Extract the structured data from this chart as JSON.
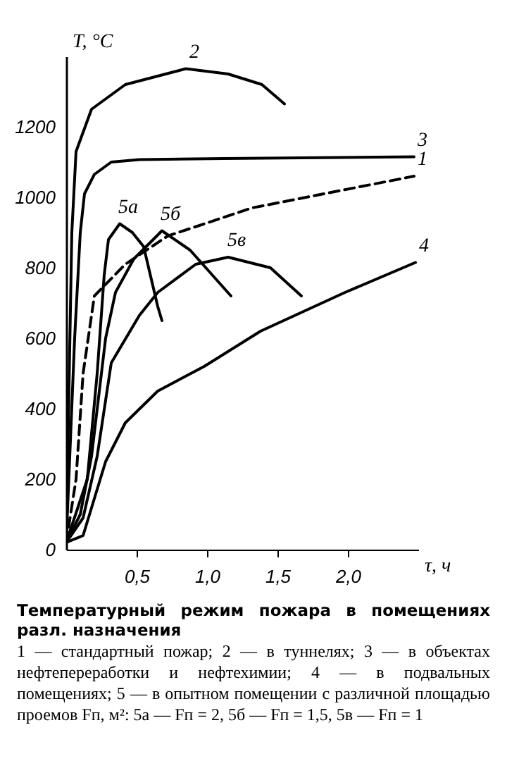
{
  "chart_data": {
    "type": "line",
    "title": "Температурный режим пожара в помещениях разл. назначения",
    "xlabel": "τ, ч",
    "ylabel": "T, °C",
    "annotations": [
      "1 — стандартный пожар; 2 — в туннелях; 3 — в объектах нефтепереработки и нефтехимии; 4 — в подвальных помещениях; 5 — в опытном помещении с различной площадью проемов Fп, м²: 5а — Fп = 2, 5б — Fп = 1,5, 5в — Fп = 1"
    ],
    "xlim": [
      0,
      2.5
    ],
    "ylim": [
      0,
      1400
    ],
    "xticks": [
      {
        "value": 0.5,
        "label": "0,5"
      },
      {
        "value": 1,
        "label": "1,0"
      },
      {
        "value": 1.5,
        "label": "1,5"
      },
      {
        "value": 2,
        "label": "2,0"
      }
    ],
    "yticks": [
      0,
      200,
      400,
      600,
      800,
      1000,
      1200
    ],
    "grid": false,
    "legend": false,
    "marker": "none",
    "series": [
      {
        "name": "2",
        "color": "#000000",
        "x": [
          0,
          0.04,
          0.07,
          0.18,
          0.42,
          0.85,
          1.15,
          1.39,
          1.55
        ],
        "values": [
          20,
          900,
          1130,
          1250,
          1320,
          1365,
          1350,
          1320,
          1265
        ]
      },
      {
        "name": "3",
        "color": "#000000",
        "x": [
          0,
          0.06,
          0.1,
          0.13,
          0.2,
          0.32,
          0.52,
          1.12,
          2.47
        ],
        "values": [
          20,
          600,
          900,
          1010,
          1065,
          1100,
          1107,
          1110,
          1115
        ]
      },
      {
        "name": "1",
        "color": "#000000",
        "line_style": "dashed",
        "x": [
          0,
          0.07,
          0.12,
          0.2,
          0.42,
          0.72,
          1.32,
          2.47
        ],
        "values": [
          20,
          200,
          500,
          720,
          810,
          890,
          970,
          1060
        ]
      },
      {
        "name": "5а",
        "color": "#000000",
        "x": [
          0,
          0.15,
          0.22,
          0.27,
          0.3,
          0.38,
          0.47,
          0.55,
          0.65,
          0.68
        ],
        "values": [
          20,
          200,
          500,
          780,
          880,
          925,
          900,
          860,
          690,
          650
        ]
      },
      {
        "name": "5б",
        "color": "#000000",
        "x": [
          0,
          0.1,
          0.18,
          0.28,
          0.35,
          0.48,
          0.68,
          0.88,
          1.17
        ],
        "values": [
          20,
          100,
          265,
          600,
          730,
          825,
          905,
          850,
          720
        ]
      },
      {
        "name": "5в",
        "color": "#000000",
        "x": [
          0,
          0.12,
          0.22,
          0.32,
          0.52,
          0.65,
          0.92,
          1.15,
          1.45,
          1.67
        ],
        "values": [
          20,
          90,
          265,
          530,
          665,
          730,
          810,
          830,
          800,
          720
        ]
      },
      {
        "name": "4",
        "color": "#000000",
        "x": [
          0,
          0.12,
          0.28,
          0.42,
          0.65,
          0.98,
          1.38,
          1.98,
          2.48
        ],
        "values": [
          20,
          40,
          250,
          360,
          450,
          520,
          620,
          730,
          815
        ]
      }
    ]
  }
}
